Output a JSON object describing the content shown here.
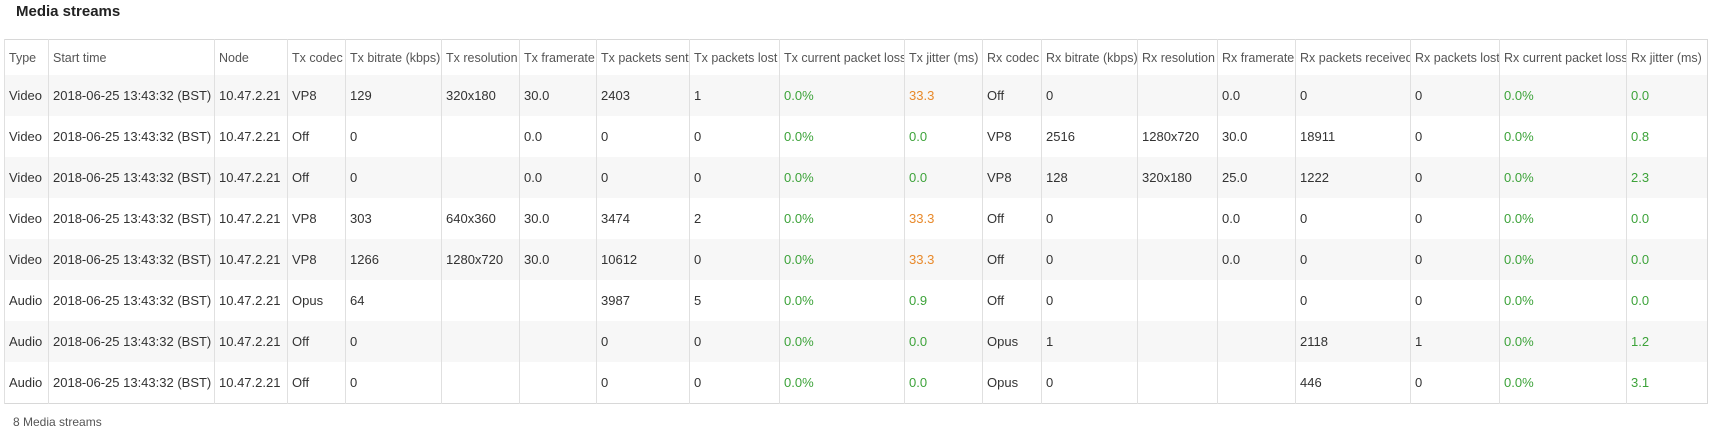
{
  "header": {
    "title": "Media streams"
  },
  "table": {
    "columns": [
      "Type",
      "Start time",
      "Node",
      "Tx codec",
      "Tx bitrate (kbps)",
      "Tx resolution",
      "Tx framerate",
      "Tx packets sent",
      "Tx packets lost",
      "Tx current packet loss",
      "Tx jitter (ms)",
      "Rx codec",
      "Rx bitrate (kbps)",
      "Rx resolution",
      "Rx framerate",
      "Rx packets received",
      "Rx packets lost",
      "Rx current packet loss",
      "Rx jitter (ms)"
    ],
    "rows": [
      [
        "Video",
        "2018-06-25 13:43:32 (BST)",
        "10.47.2.21",
        "VP8",
        "129",
        "320x180",
        "30.0",
        "2403",
        "1",
        "0.0%",
        "33.3",
        "Off",
        "0",
        null,
        "0.0",
        "0",
        "0",
        "0.0%",
        "0.0"
      ],
      [
        "Video",
        "2018-06-25 13:43:32 (BST)",
        "10.47.2.21",
        "Off",
        "0",
        null,
        "0.0",
        "0",
        "0",
        "0.0%",
        "0.0",
        "VP8",
        "2516",
        "1280x720",
        "30.0",
        "18911",
        "0",
        "0.0%",
        "0.8"
      ],
      [
        "Video",
        "2018-06-25 13:43:32 (BST)",
        "10.47.2.21",
        "Off",
        "0",
        null,
        "0.0",
        "0",
        "0",
        "0.0%",
        "0.0",
        "VP8",
        "128",
        "320x180",
        "25.0",
        "1222",
        "0",
        "0.0%",
        "2.3"
      ],
      [
        "Video",
        "2018-06-25 13:43:32 (BST)",
        "10.47.2.21",
        "VP8",
        "303",
        "640x360",
        "30.0",
        "3474",
        "2",
        "0.0%",
        "33.3",
        "Off",
        "0",
        null,
        "0.0",
        "0",
        "0",
        "0.0%",
        "0.0"
      ],
      [
        "Video",
        "2018-06-25 13:43:32 (BST)",
        "10.47.2.21",
        "VP8",
        "1266",
        "1280x720",
        "30.0",
        "10612",
        "0",
        "0.0%",
        "33.3",
        "Off",
        "0",
        null,
        "0.0",
        "0",
        "0",
        "0.0%",
        "0.0"
      ],
      [
        "Audio",
        "2018-06-25 13:43:32 (BST)",
        "10.47.2.21",
        "Opus",
        "64",
        null,
        null,
        "3987",
        "5",
        "0.0%",
        "0.9",
        "Off",
        "0",
        null,
        null,
        "0",
        "0",
        "0.0%",
        "0.0"
      ],
      [
        "Audio",
        "2018-06-25 13:43:32 (BST)",
        "10.47.2.21",
        "Off",
        "0",
        null,
        null,
        "0",
        "0",
        "0.0%",
        "0.0",
        "Opus",
        "1",
        null,
        null,
        "2118",
        "1",
        "0.0%",
        "1.2"
      ],
      [
        "Audio",
        "2018-06-25 13:43:32 (BST)",
        "10.47.2.21",
        "Off",
        "0",
        null,
        null,
        "0",
        "0",
        "0.0%",
        "0.0",
        "Opus",
        "0",
        null,
        null,
        "446",
        "0",
        "0.0%",
        "3.1"
      ]
    ],
    "cell_colors": [
      [
        null,
        null,
        null,
        null,
        null,
        null,
        null,
        null,
        null,
        "#3da33a",
        "#e8892a",
        null,
        null,
        null,
        null,
        null,
        null,
        "#3da33a",
        "#3da33a"
      ],
      [
        null,
        null,
        null,
        null,
        null,
        null,
        null,
        null,
        null,
        "#3da33a",
        "#3da33a",
        null,
        null,
        null,
        null,
        null,
        null,
        "#3da33a",
        "#3da33a"
      ],
      [
        null,
        null,
        null,
        null,
        null,
        null,
        null,
        null,
        null,
        "#3da33a",
        "#3da33a",
        null,
        null,
        null,
        null,
        null,
        null,
        "#3da33a",
        "#3da33a"
      ],
      [
        null,
        null,
        null,
        null,
        null,
        null,
        null,
        null,
        null,
        "#3da33a",
        "#e8892a",
        null,
        null,
        null,
        null,
        null,
        null,
        "#3da33a",
        "#3da33a"
      ],
      [
        null,
        null,
        null,
        null,
        null,
        null,
        null,
        null,
        null,
        "#3da33a",
        "#e8892a",
        null,
        null,
        null,
        null,
        null,
        null,
        "#3da33a",
        "#3da33a"
      ],
      [
        null,
        null,
        null,
        null,
        null,
        null,
        null,
        null,
        null,
        "#3da33a",
        "#3da33a",
        null,
        null,
        null,
        null,
        null,
        null,
        "#3da33a",
        "#3da33a"
      ],
      [
        null,
        null,
        null,
        null,
        null,
        null,
        null,
        null,
        null,
        "#3da33a",
        "#3da33a",
        null,
        null,
        null,
        null,
        null,
        null,
        "#3da33a",
        "#3da33a"
      ],
      [
        null,
        null,
        null,
        null,
        null,
        null,
        null,
        null,
        null,
        "#3da33a",
        "#3da33a",
        null,
        null,
        null,
        null,
        null,
        null,
        "#3da33a",
        "#3da33a"
      ]
    ]
  },
  "footer": {
    "count": "8 Media streams"
  }
}
